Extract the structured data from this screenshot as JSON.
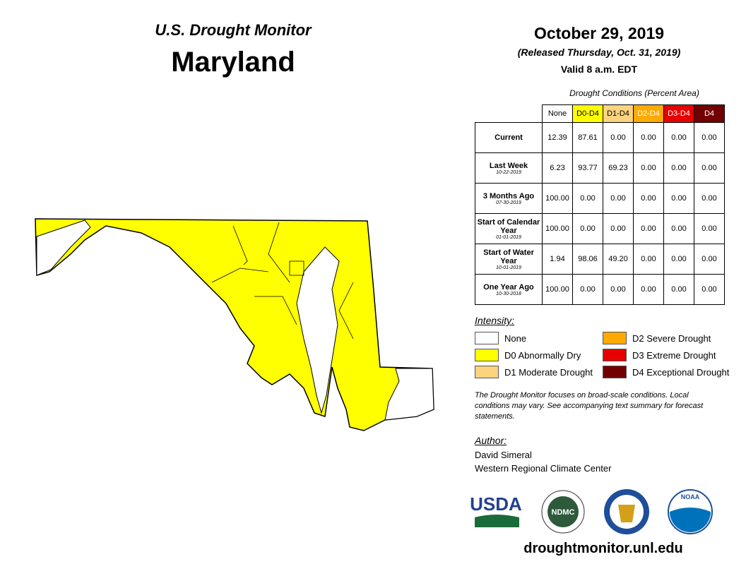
{
  "header": {
    "title": "U.S. Drought Monitor",
    "state": "Maryland",
    "date": "October 29, 2019",
    "released": "(Released Thursday, Oct. 31, 2019)",
    "valid": "Valid 8 a.m. EDT"
  },
  "table": {
    "caption": "Drought Conditions (Percent Area)",
    "columns": [
      {
        "label": "None",
        "color": "#ffffff",
        "text": "#000000"
      },
      {
        "label": "D0-D4",
        "color": "#ffff00",
        "text": "#000000"
      },
      {
        "label": "D1-D4",
        "color": "#fcd37f",
        "text": "#000000"
      },
      {
        "label": "D2-D4",
        "color": "#ffaa00",
        "text": "#ffffff"
      },
      {
        "label": "D3-D4",
        "color": "#e60000",
        "text": "#ffffff"
      },
      {
        "label": "D4",
        "color": "#730000",
        "text": "#ffffff"
      }
    ],
    "rows": [
      {
        "label": "Current",
        "cells": [
          "12.39",
          "87.61",
          "0.00",
          "0.00",
          "0.00",
          "0.00"
        ]
      },
      {
        "label": "Last Week",
        "date": "10-22-2019",
        "cells": [
          "6.23",
          "93.77",
          "69.23",
          "0.00",
          "0.00",
          "0.00"
        ]
      },
      {
        "label": "3 Months Ago",
        "date": "07-30-2019",
        "cells": [
          "100.00",
          "0.00",
          "0.00",
          "0.00",
          "0.00",
          "0.00"
        ]
      },
      {
        "label": "Start of Calendar Year",
        "date": "01-01-2019",
        "cells": [
          "100.00",
          "0.00",
          "0.00",
          "0.00",
          "0.00",
          "0.00"
        ]
      },
      {
        "label": "Start of Water Year",
        "date": "10-01-2019",
        "cells": [
          "1.94",
          "98.06",
          "49.20",
          "0.00",
          "0.00",
          "0.00"
        ]
      },
      {
        "label": "One Year Ago",
        "date": "10-30-2018",
        "cells": [
          "100.00",
          "0.00",
          "0.00",
          "0.00",
          "0.00",
          "0.00"
        ]
      }
    ]
  },
  "legend": {
    "title": "Intensity:",
    "items": [
      {
        "label": "None",
        "color": "#ffffff"
      },
      {
        "label": "D0 Abnormally Dry",
        "color": "#ffff00"
      },
      {
        "label": "D1 Moderate Drought",
        "color": "#fcd37f"
      },
      {
        "label": "D2 Severe Drought",
        "color": "#ffaa00"
      },
      {
        "label": "D3 Extreme Drought",
        "color": "#e60000"
      },
      {
        "label": "D4 Exceptional Drought",
        "color": "#730000"
      }
    ]
  },
  "note": "The Drought Monitor focuses on broad-scale conditions. Local conditions may vary. See accompanying text summary for forecast statements.",
  "author": {
    "title": "Author:",
    "name": "David Simeral",
    "org": "Western Regional Climate Center"
  },
  "logos": [
    "USDA",
    "NDMC",
    "NOAA"
  ],
  "url": "droughtmonitor.unl.edu"
}
